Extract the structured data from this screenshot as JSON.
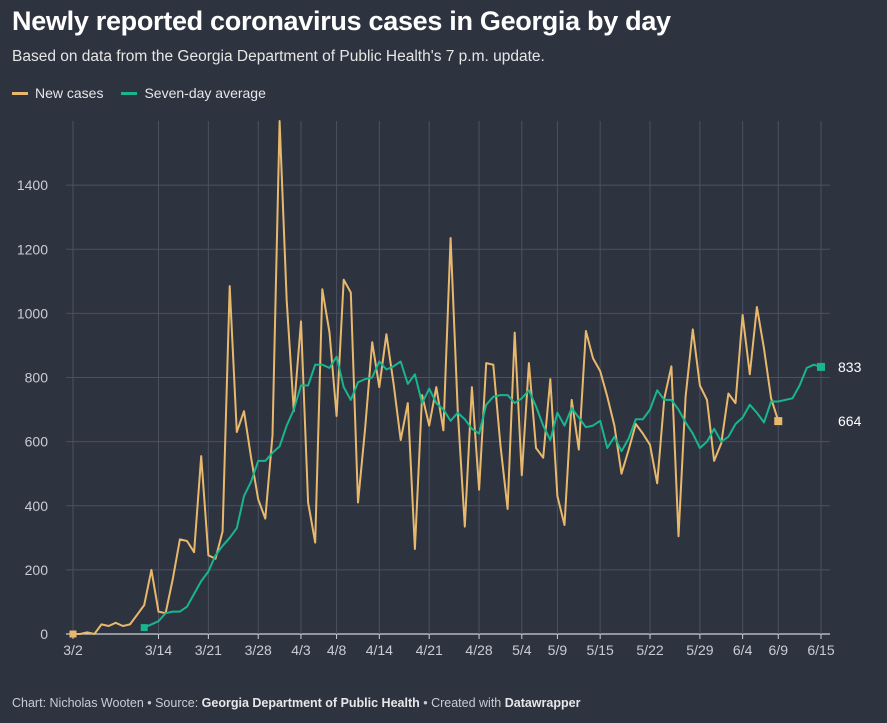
{
  "header": {
    "title": "Newly reported coronavirus cases in Georgia by day",
    "subtitle": "Based on data from the Georgia Department of Public Health's 7 p.m. update."
  },
  "legend": {
    "items": [
      {
        "label": "New cases",
        "color": "#e8b86d"
      },
      {
        "label": "Seven-day average",
        "color": "#18b58f"
      }
    ]
  },
  "footer": {
    "chart_prefix": "Chart: Nicholas Wooten • Source: ",
    "source": "Georgia Department of Public Health",
    "created_prefix": " • Created with ",
    "tool": "Datawrapper"
  },
  "chart_data": {
    "type": "line",
    "title": "Newly reported coronavirus cases in Georgia by day",
    "x_start": "3/2",
    "x_end": "6/16",
    "x_tick_labels": [
      "3/2",
      "3/14",
      "3/21",
      "3/28",
      "4/3",
      "4/8",
      "4/14",
      "4/21",
      "4/28",
      "5/4",
      "5/9",
      "5/15",
      "5/22",
      "5/29",
      "6/4",
      "6/9",
      "6/15"
    ],
    "x_tick_days": [
      0,
      12,
      19,
      26,
      32,
      37,
      43,
      50,
      57,
      63,
      68,
      74,
      81,
      88,
      94,
      99,
      105
    ],
    "y_ticks": [
      0,
      200,
      400,
      600,
      800,
      1000,
      1200,
      1400
    ],
    "ylim": [
      0,
      1600
    ],
    "grid": true,
    "series": [
      {
        "name": "New cases",
        "color": "#e8b86d",
        "start_day": 0,
        "values": [
          0,
          0,
          5,
          0,
          30,
          25,
          35,
          25,
          30,
          60,
          90,
          200,
          70,
          65,
          170,
          295,
          290,
          255,
          555,
          245,
          235,
          320,
          1085,
          630,
          695,
          550,
          420,
          360,
          620,
          1600,
          1040,
          695,
          975,
          410,
          285,
          1075,
          940,
          680,
          1105,
          1065,
          410,
          640,
          910,
          770,
          935,
          780,
          605,
          720,
          265,
          745,
          650,
          770,
          635,
          1235,
          700,
          335,
          770,
          450,
          845,
          840,
          590,
          390,
          940,
          495,
          845,
          580,
          550,
          795,
          430,
          340,
          730,
          575,
          945,
          860,
          820,
          740,
          650,
          500,
          575,
          655,
          625,
          590,
          470,
          735,
          835,
          305,
          740,
          950,
          775,
          730,
          540,
          595,
          750,
          720,
          995,
          810,
          1020,
          890,
          735,
          664
        ]
      },
      {
        "name": "Seven-day average",
        "color": "#18b58f",
        "start_day": 10,
        "values": [
          20,
          30,
          40,
          65,
          70,
          70,
          85,
          125,
          165,
          195,
          245,
          275,
          300,
          330,
          430,
          475,
          540,
          540,
          565,
          585,
          650,
          700,
          775,
          775,
          840,
          840,
          830,
          865,
          770,
          730,
          785,
          795,
          800,
          850,
          825,
          835,
          850,
          780,
          810,
          720,
          765,
          720,
          700,
          665,
          690,
          670,
          640,
          625,
          715,
          740,
          745,
          745,
          720,
          735,
          760,
          710,
          650,
          605,
          690,
          650,
          705,
          675,
          645,
          650,
          665,
          580,
          615,
          570,
          610,
          670,
          670,
          700,
          760,
          730,
          730,
          700,
          660,
          625,
          580,
          600,
          640,
          600,
          615,
          655,
          675,
          715,
          690,
          660,
          725,
          725,
          730,
          735,
          775,
          830,
          840,
          833
        ]
      }
    ],
    "end_labels": [
      {
        "series": "Seven-day average",
        "text": "833",
        "value": 833
      },
      {
        "series": "New cases",
        "text": "664",
        "value": 664
      }
    ]
  }
}
